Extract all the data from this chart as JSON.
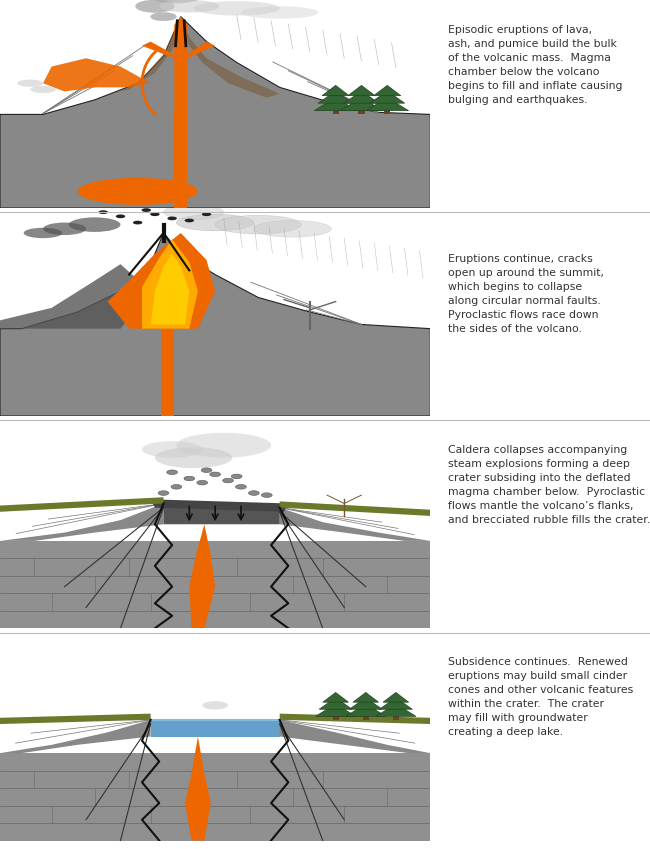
{
  "panels": [
    {
      "text": "Episodic eruptions of lava,\nash, and pumice build the bulk\nof the volcanic mass.  Magma\nchamber below the volcano\nbegins to fill and inflate causing\nbulging and earthquakes.",
      "type": "pre_eruption"
    },
    {
      "text": "Eruptions continue, cracks\nopen up around the summit,\nwhich begins to collapse\nalong circular normal faults.\nPyroclastic flows race down\nthe sides of the volcano.",
      "type": "eruption"
    },
    {
      "text": "Caldera collapses accompanying\nsteam explosions forming a deep\ncrater subsiding into the deflated\nmagma chamber below.  Pyroclastic\nflows mantle the volcano’s flanks,\nand brecciated rubble fills the crater.",
      "type": "collapse"
    },
    {
      "text": "Subsidence continues.  Renewed\neruptions may build small cinder\ncones and other volcanic features\nwithin the crater.  The crater\nmay fill with groundwater\ncreating a deep lake.",
      "type": "post_collapse"
    }
  ],
  "colors": {
    "bg": "#ffffff",
    "illus_bg": "#e8e8e8",
    "rock_gray": "#888888",
    "rock_dark": "#666666",
    "rock_mid": "#999999",
    "rock_light": "#aaaaaa",
    "lava_orange": "#ee6600",
    "lava_bright": "#ff8800",
    "lava_yellow": "#ffcc00",
    "magma": "#ff5500",
    "sky": "#ffffff",
    "smoke_light": "#dddddd",
    "smoke_dark": "#aaaaaa",
    "text_color": "#333333",
    "tree_green": "#336633",
    "tree_dark": "#224422",
    "trunk_brown": "#6b4226",
    "grass_green": "#556b2f",
    "outline": "#222222",
    "crack_dark": "#111111",
    "brown_layer": "#7a5c3a",
    "ash_gray": "#999999",
    "water_blue": "#4a90c4",
    "rubble": "#777777",
    "pyroclastic": "#555555"
  }
}
